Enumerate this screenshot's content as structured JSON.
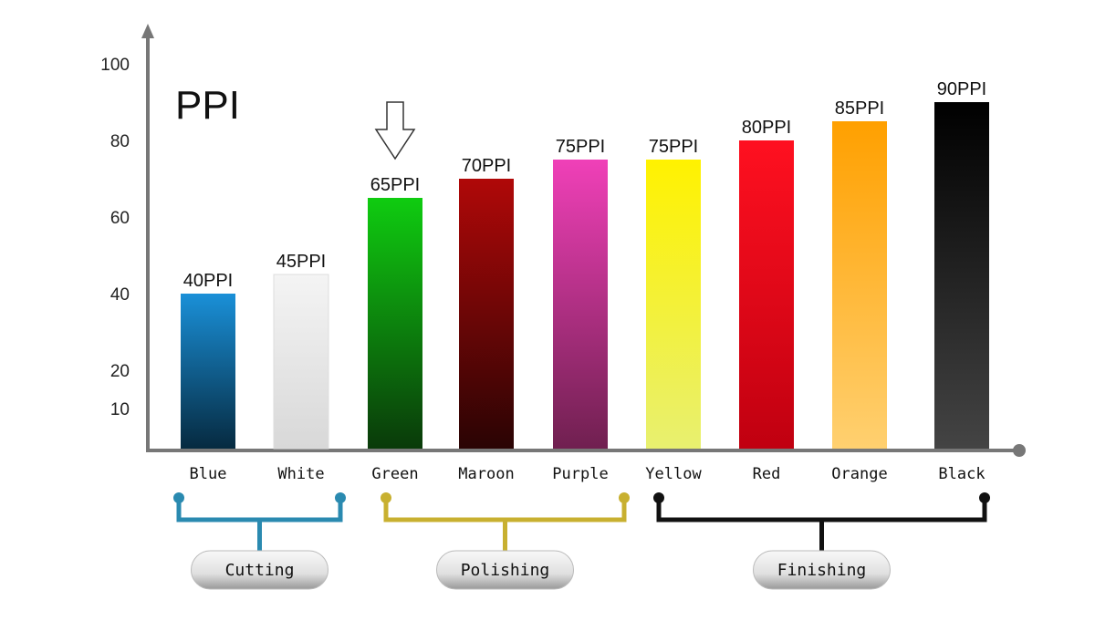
{
  "chart_data": {
    "type": "bar",
    "title": "PPI",
    "xlabel": "",
    "ylabel": "",
    "ylim": [
      0,
      100
    ],
    "yticks": [
      10,
      20,
      40,
      60,
      80,
      100
    ],
    "grid": false,
    "categories": [
      "Blue",
      "White",
      "Green",
      "Maroon",
      "Purple",
      "Yellow",
      "Red",
      "Orange",
      "Black"
    ],
    "values": [
      40,
      45,
      65,
      70,
      75,
      75,
      80,
      85,
      90
    ],
    "data_labels": [
      "40PPI",
      "45PPI",
      "65PPI",
      "70PPI",
      "75PPI",
      "75PPI",
      "80PPI",
      "85PPI",
      "90PPI"
    ],
    "colors": [
      [
        "#1a90d8",
        "#062a40"
      ],
      [
        "#f4f4f4",
        "#d8d8d8"
      ],
      [
        "#0fcc10",
        "#0a3a0a"
      ],
      [
        "#b00808",
        "#2a0404"
      ],
      [
        "#f040b8",
        "#702050"
      ],
      [
        "#fff200",
        "#e8f070"
      ],
      [
        "#ff1020",
        "#c00010"
      ],
      [
        "#ffa000",
        "#ffd070"
      ],
      [
        "#000000",
        "#444444"
      ]
    ],
    "annotation": {
      "type": "down-arrow",
      "category": "Green"
    },
    "groups": [
      {
        "label": "Cutting",
        "from": "Blue",
        "to": "White",
        "color": "#2a8ab0"
      },
      {
        "label": "Polishing",
        "from": "Green",
        "to": "Purple",
        "color": "#c8b030"
      },
      {
        "label": "Finishing",
        "from": "Yellow",
        "to": "Black",
        "color": "#111111"
      }
    ]
  }
}
